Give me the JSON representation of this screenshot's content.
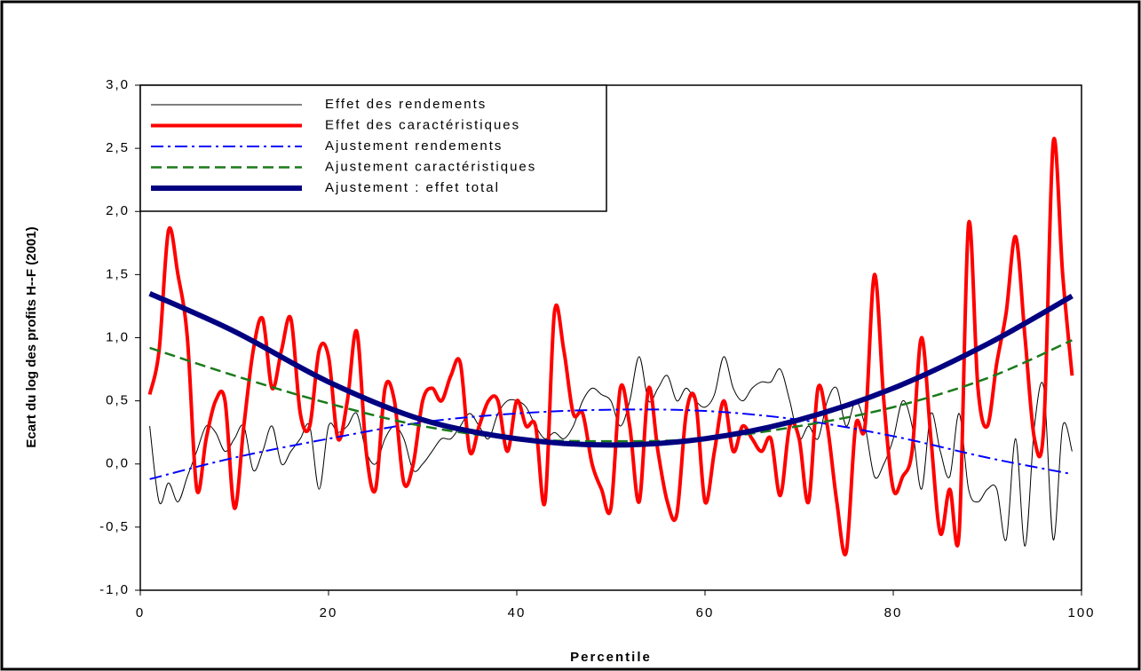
{
  "chart_data": {
    "type": "line",
    "ylabel": "Ecart du log des profits H--F (2001)",
    "xlabel": "Percentile",
    "xlim": [
      0,
      100
    ],
    "xticks": [
      0,
      20,
      40,
      60,
      80,
      100
    ],
    "ylim": [
      -1,
      3
    ],
    "yticks": [
      {
        "value": -1,
        "label": "-1,0"
      },
      {
        "value": -0.5,
        "label": "-0,5"
      },
      {
        "value": 0,
        "label": "0,0"
      },
      {
        "value": 0.5,
        "label": "0,5"
      },
      {
        "value": 1,
        "label": "1,0"
      },
      {
        "value": 1.5,
        "label": "1,5"
      },
      {
        "value": 2,
        "label": "2,0"
      },
      {
        "value": 2.5,
        "label": "2,5"
      },
      {
        "value": 3,
        "label": "3,0"
      }
    ],
    "legend": "upper left",
    "series": [
      {
        "name": "Effet des rendements",
        "color": "#000000",
        "width": 1,
        "dash": "none",
        "x": [
          1,
          2,
          3,
          4,
          5,
          6,
          7,
          8,
          9,
          10,
          11,
          12,
          13,
          14,
          15,
          16,
          17,
          18,
          19,
          20,
          21,
          22,
          23,
          24,
          25,
          26,
          27,
          28,
          29,
          30,
          31,
          32,
          33,
          34,
          35,
          36,
          37,
          38,
          39,
          40,
          41,
          42,
          43,
          44,
          45,
          46,
          47,
          48,
          49,
          50,
          51,
          52,
          53,
          54,
          55,
          56,
          57,
          58,
          59,
          60,
          61,
          62,
          63,
          64,
          65,
          66,
          67,
          68,
          69,
          70,
          71,
          72,
          73,
          74,
          75,
          76,
          77,
          78,
          79,
          80,
          81,
          82,
          83,
          84,
          85,
          86,
          87,
          88,
          89,
          90,
          91,
          92,
          93,
          94,
          95,
          96,
          97,
          98,
          99
        ],
        "values": [
          0.3,
          -0.3,
          -0.15,
          -0.3,
          -0.1,
          0.1,
          0.3,
          0.25,
          0.1,
          0.2,
          0.3,
          -0.05,
          0.1,
          0.3,
          0.0,
          0.1,
          0.2,
          0.3,
          -0.2,
          0.3,
          0.25,
          0.3,
          0.4,
          0.1,
          0.0,
          0.2,
          0.3,
          0.2,
          -0.05,
          0.0,
          0.1,
          0.2,
          0.2,
          0.3,
          0.4,
          0.3,
          0.2,
          0.4,
          0.5,
          0.5,
          0.45,
          0.3,
          0.2,
          0.25,
          0.2,
          0.3,
          0.5,
          0.6,
          0.55,
          0.5,
          0.3,
          0.5,
          0.85,
          0.5,
          0.6,
          0.7,
          0.5,
          0.6,
          0.5,
          0.45,
          0.55,
          0.85,
          0.6,
          0.5,
          0.6,
          0.65,
          0.65,
          0.75,
          0.5,
          0.2,
          0.3,
          0.2,
          0.5,
          0.6,
          0.3,
          0.5,
          0.3,
          -0.1,
          0.0,
          0.2,
          0.5,
          0.3,
          -0.2,
          0.4,
          0.1,
          -0.1,
          0.4,
          -0.2,
          -0.3,
          -0.2,
          -0.2,
          -0.6,
          0.2,
          -0.65,
          0.3,
          0.6,
          -0.6,
          0.3,
          0.1
        ]
      },
      {
        "name": "Effet des caractéristiques",
        "color": "#ff0000",
        "width": 4,
        "dash": "none",
        "x": [
          1,
          2,
          3,
          4,
          5,
          6,
          7,
          8,
          9,
          10,
          11,
          12,
          13,
          14,
          15,
          16,
          17,
          18,
          19,
          20,
          21,
          22,
          23,
          24,
          25,
          26,
          27,
          28,
          29,
          30,
          31,
          32,
          33,
          34,
          35,
          36,
          37,
          38,
          39,
          40,
          41,
          42,
          43,
          44,
          45,
          46,
          47,
          48,
          49,
          50,
          51,
          52,
          53,
          54,
          55,
          56,
          57,
          58,
          59,
          60,
          61,
          62,
          63,
          64,
          65,
          66,
          67,
          68,
          69,
          70,
          71,
          72,
          73,
          74,
          75,
          76,
          77,
          78,
          79,
          80,
          81,
          82,
          83,
          84,
          85,
          86,
          87,
          88,
          89,
          90,
          91,
          92,
          93,
          94,
          95,
          96,
          97,
          98,
          99
        ],
        "values": [
          0.55,
          0.9,
          1.85,
          1.5,
          1.0,
          -0.2,
          0.2,
          0.5,
          0.5,
          -0.35,
          0.3,
          0.9,
          1.15,
          0.6,
          0.9,
          1.15,
          0.4,
          0.3,
          0.9,
          0.85,
          0.2,
          0.5,
          1.05,
          0.1,
          -0.2,
          0.6,
          0.5,
          -0.15,
          0.0,
          0.5,
          0.6,
          0.5,
          0.7,
          0.8,
          0.1,
          0.3,
          0.5,
          0.5,
          0.1,
          0.5,
          0.3,
          0.3,
          -0.3,
          1.2,
          0.9,
          0.4,
          0.4,
          0.0,
          -0.2,
          -0.35,
          0.6,
          0.3,
          -0.3,
          0.6,
          0.1,
          -0.3,
          -0.4,
          0.4,
          0.5,
          -0.3,
          0.1,
          0.5,
          0.1,
          0.3,
          0.2,
          0.1,
          0.2,
          -0.25,
          0.3,
          0.2,
          -0.3,
          0.6,
          0.3,
          -0.3,
          -0.7,
          0.3,
          0.3,
          1.5,
          0.5,
          -0.2,
          -0.1,
          0.1,
          1.0,
          0.2,
          -0.55,
          -0.2,
          -0.55,
          1.9,
          0.6,
          0.3,
          0.8,
          1.2,
          1.8,
          1.0,
          0.2,
          0.3,
          2.55,
          1.5,
          0.7
        ]
      },
      {
        "name": "Ajustement rendements",
        "color": "#0000ff",
        "width": 2,
        "dash": "14 5 3 5",
        "x": [
          1,
          10,
          20,
          30,
          40,
          50,
          60,
          70,
          80,
          90,
          99
        ],
        "values": [
          -0.12,
          0.05,
          0.2,
          0.33,
          0.4,
          0.43,
          0.42,
          0.35,
          0.22,
          0.05,
          -0.08
        ]
      },
      {
        "name": "Ajustement caractéristiques",
        "color": "#1a7a1a",
        "width": 2.5,
        "dash": "12 6",
        "x": [
          1,
          10,
          20,
          30,
          40,
          50,
          60,
          70,
          80,
          90,
          99
        ],
        "values": [
          0.92,
          0.7,
          0.48,
          0.3,
          0.2,
          0.18,
          0.2,
          0.3,
          0.45,
          0.68,
          0.98
        ]
      },
      {
        "name": "Ajustement : effet total",
        "color": "#000080",
        "width": 6,
        "dash": "none",
        "x": [
          1,
          10,
          20,
          30,
          40,
          50,
          60,
          70,
          80,
          90,
          99
        ],
        "values": [
          1.35,
          1.05,
          0.65,
          0.35,
          0.2,
          0.15,
          0.2,
          0.35,
          0.6,
          0.95,
          1.33
        ]
      }
    ]
  }
}
